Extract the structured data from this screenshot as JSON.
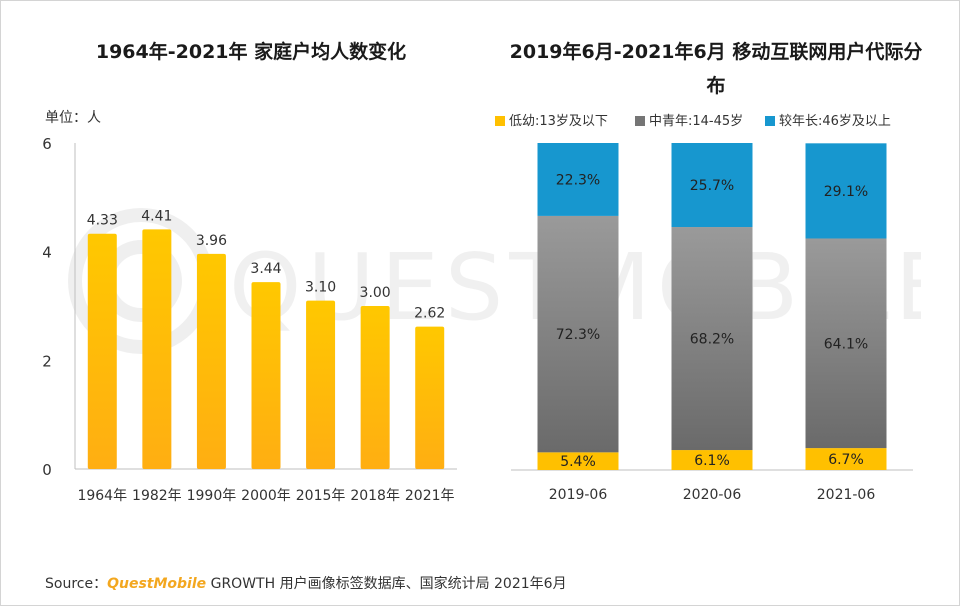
{
  "source": {
    "prefix": "Source：",
    "brand": "QuestMobile",
    "text": "GROWTH 用户画像标签数据库、国家统计局 2021年6月"
  },
  "watermark_text": "QUESTMOBILE",
  "colors": {
    "bar_gold_top": "#ffc800",
    "bar_gold_bottom": "#ffae12",
    "youth": "#ffc000",
    "middle": "#757575",
    "senior": "#1797cf",
    "axis": "#bfbfbf"
  },
  "chart_data": [
    {
      "type": "bar",
      "title": "1964年-2021年 家庭户均人数变化",
      "unit_label": "单位：人",
      "categories": [
        "1964年",
        "1982年",
        "1990年",
        "2000年",
        "2015年",
        "2018年",
        "2021年"
      ],
      "values": [
        4.33,
        4.41,
        3.96,
        3.44,
        3.1,
        3.0,
        2.62
      ],
      "data_labels": [
        "4.33",
        "4.41",
        "3.96",
        "3.44",
        "3.10",
        "3.00",
        "2.62"
      ],
      "ylim": [
        0,
        6
      ],
      "yticks": [
        0,
        2,
        4,
        6
      ],
      "ytick_labels": [
        "0",
        "2",
        "4",
        "6"
      ],
      "xlabel": "",
      "ylabel": ""
    },
    {
      "type": "bar",
      "stacked": true,
      "title": "2019年6月-2021年6月 移动互联网用户代际分布",
      "categories": [
        "2019-06",
        "2020-06",
        "2021-06"
      ],
      "legend_position": "top",
      "series": [
        {
          "name": "低幼:13岁及以下",
          "values": [
            5.4,
            6.1,
            6.7
          ],
          "labels": [
            "5.4%",
            "6.1%",
            "6.7%"
          ]
        },
        {
          "name": "中青年:14-45岁",
          "values": [
            72.3,
            68.2,
            64.1
          ],
          "labels": [
            "72.3%",
            "68.2%",
            "64.1%"
          ]
        },
        {
          "name": "较年长:46岁及以上",
          "values": [
            22.3,
            25.7,
            29.1
          ],
          "labels": [
            "22.3%",
            "25.7%",
            "29.1%"
          ]
        }
      ],
      "ylim": [
        0,
        100
      ]
    }
  ]
}
